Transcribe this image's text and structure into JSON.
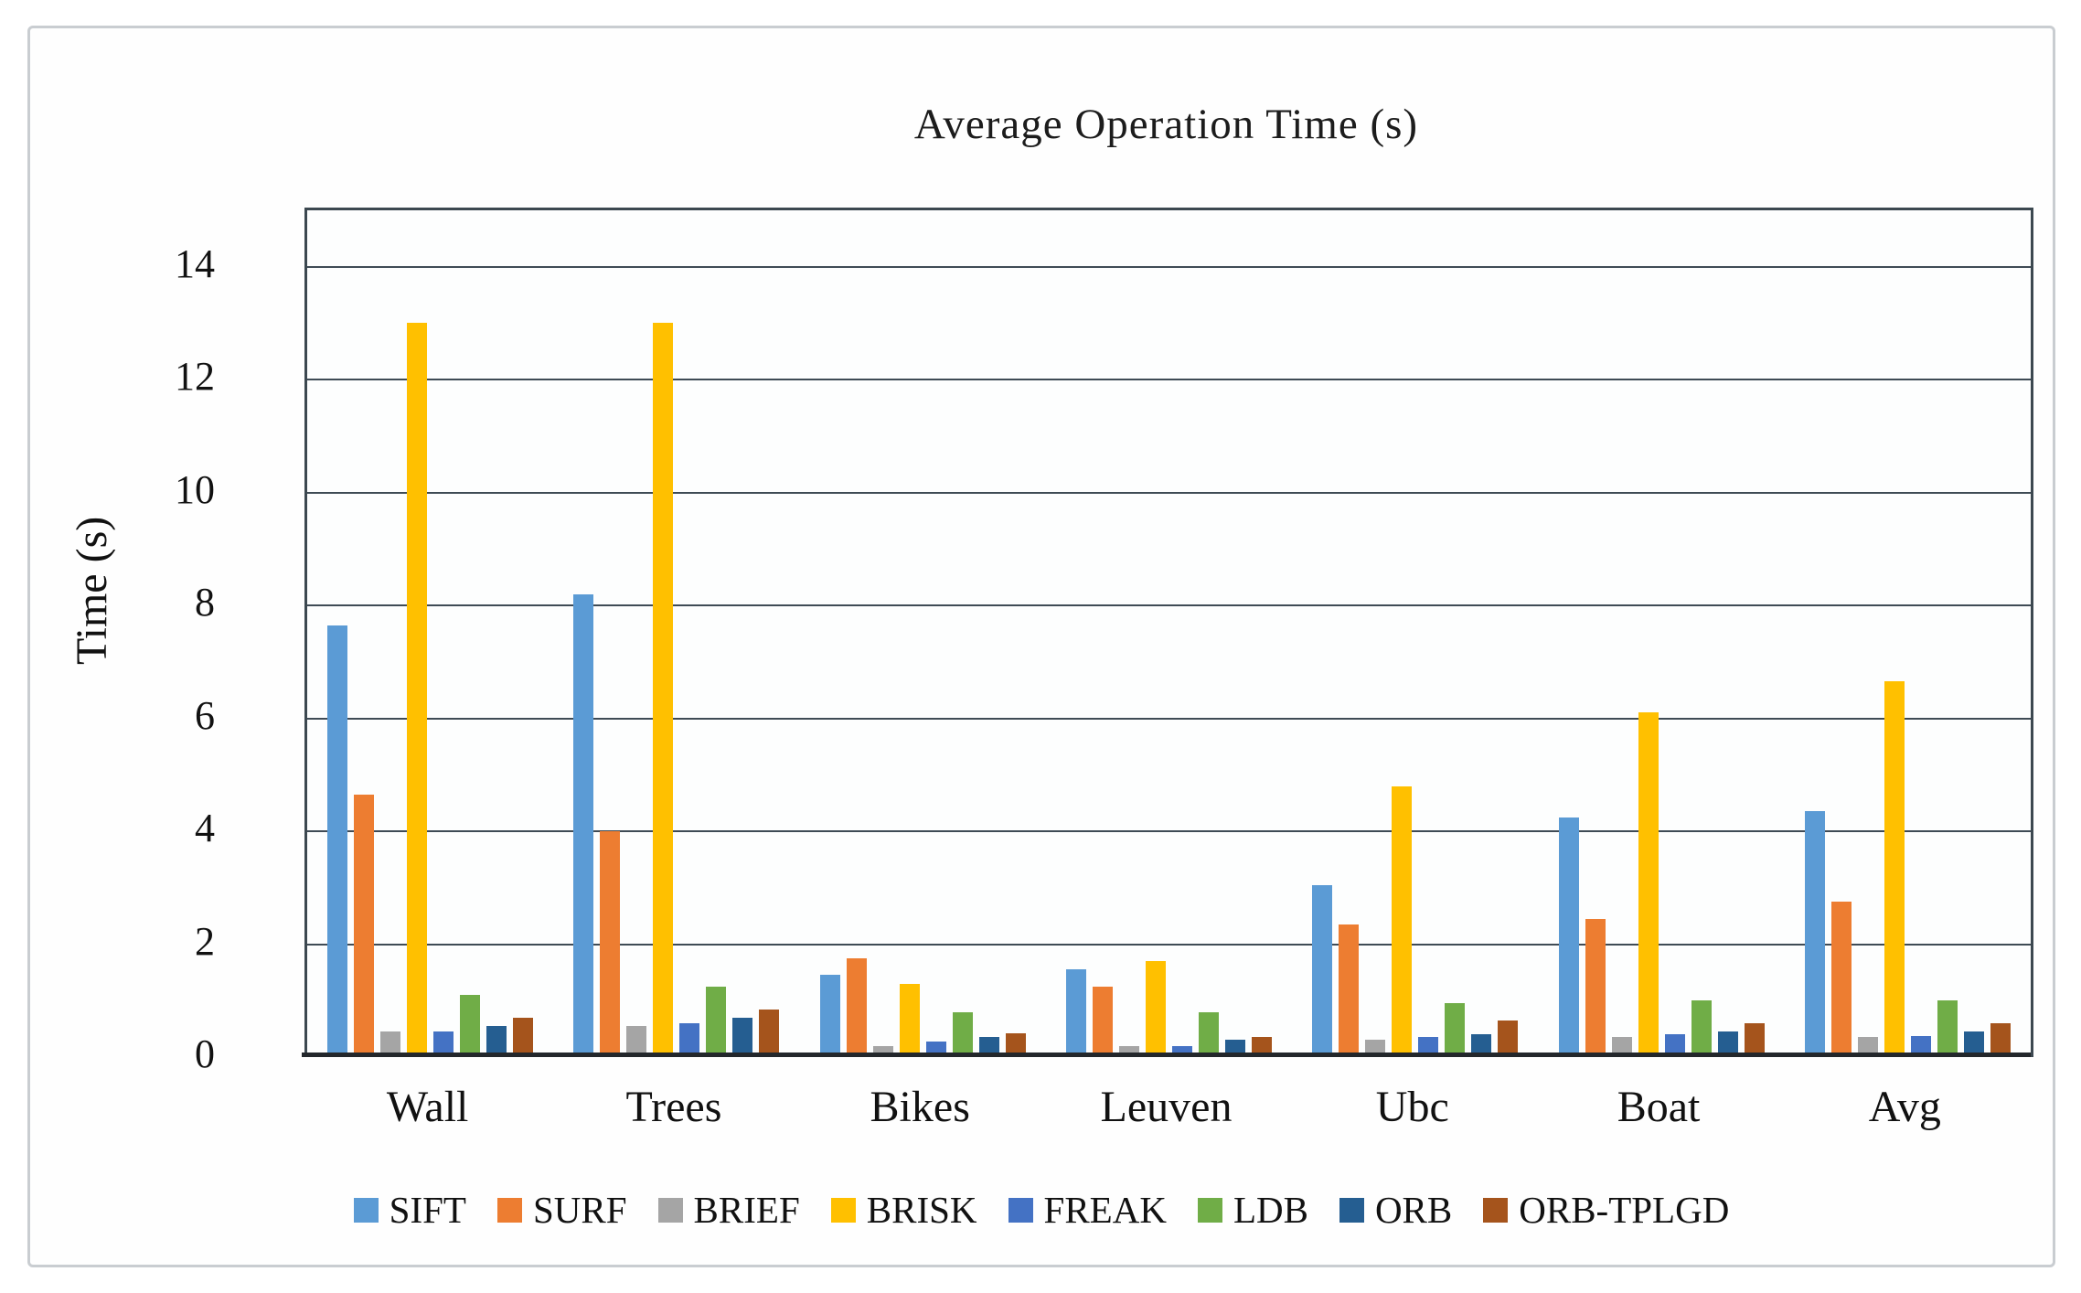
{
  "figure": {
    "title": "Average Operation Time (s)"
  },
  "chart_data": {
    "type": "bar",
    "title": "Average Operation Time (s)",
    "xlabel": "",
    "ylabel": "Time (s)",
    "ylim": [
      0,
      15
    ],
    "yticks": [
      0,
      2,
      4,
      6,
      8,
      10,
      12,
      14
    ],
    "grid": true,
    "legend_position": "bottom",
    "categories": [
      "Wall",
      "Trees",
      "Bikes",
      "Leuven",
      "Ubc",
      "Boat",
      "Avg"
    ],
    "series": [
      {
        "name": "SIFT",
        "color": "#5B9BD5",
        "values": [
          7.65,
          8.2,
          1.45,
          1.55,
          3.05,
          4.25,
          4.35
        ]
      },
      {
        "name": "SURF",
        "color": "#ED7D31",
        "values": [
          4.65,
          4.0,
          1.75,
          1.25,
          2.35,
          2.45,
          2.75
        ]
      },
      {
        "name": "BRIEF",
        "color": "#A5A5A5",
        "values": [
          0.45,
          0.55,
          0.2,
          0.2,
          0.3,
          0.35,
          0.35
        ]
      },
      {
        "name": "BRISK",
        "color": "#FFC000",
        "values": [
          13.0,
          13.0,
          1.3,
          1.7,
          4.8,
          6.1,
          6.65
        ]
      },
      {
        "name": "FREAK",
        "color": "#4472C4",
        "values": [
          0.45,
          0.6,
          0.28,
          0.2,
          0.35,
          0.4,
          0.38
        ]
      },
      {
        "name": "LDB",
        "color": "#70AD47",
        "values": [
          1.1,
          1.25,
          0.8,
          0.8,
          0.95,
          1.0,
          1.0
        ]
      },
      {
        "name": "ORB",
        "color": "#255E91",
        "values": [
          0.55,
          0.7,
          0.35,
          0.3,
          0.4,
          0.45,
          0.45
        ]
      },
      {
        "name": "ORB-TPLGD",
        "color": "#A5541C",
        "values": [
          0.7,
          0.85,
          0.42,
          0.35,
          0.65,
          0.6,
          0.6
        ]
      }
    ]
  }
}
